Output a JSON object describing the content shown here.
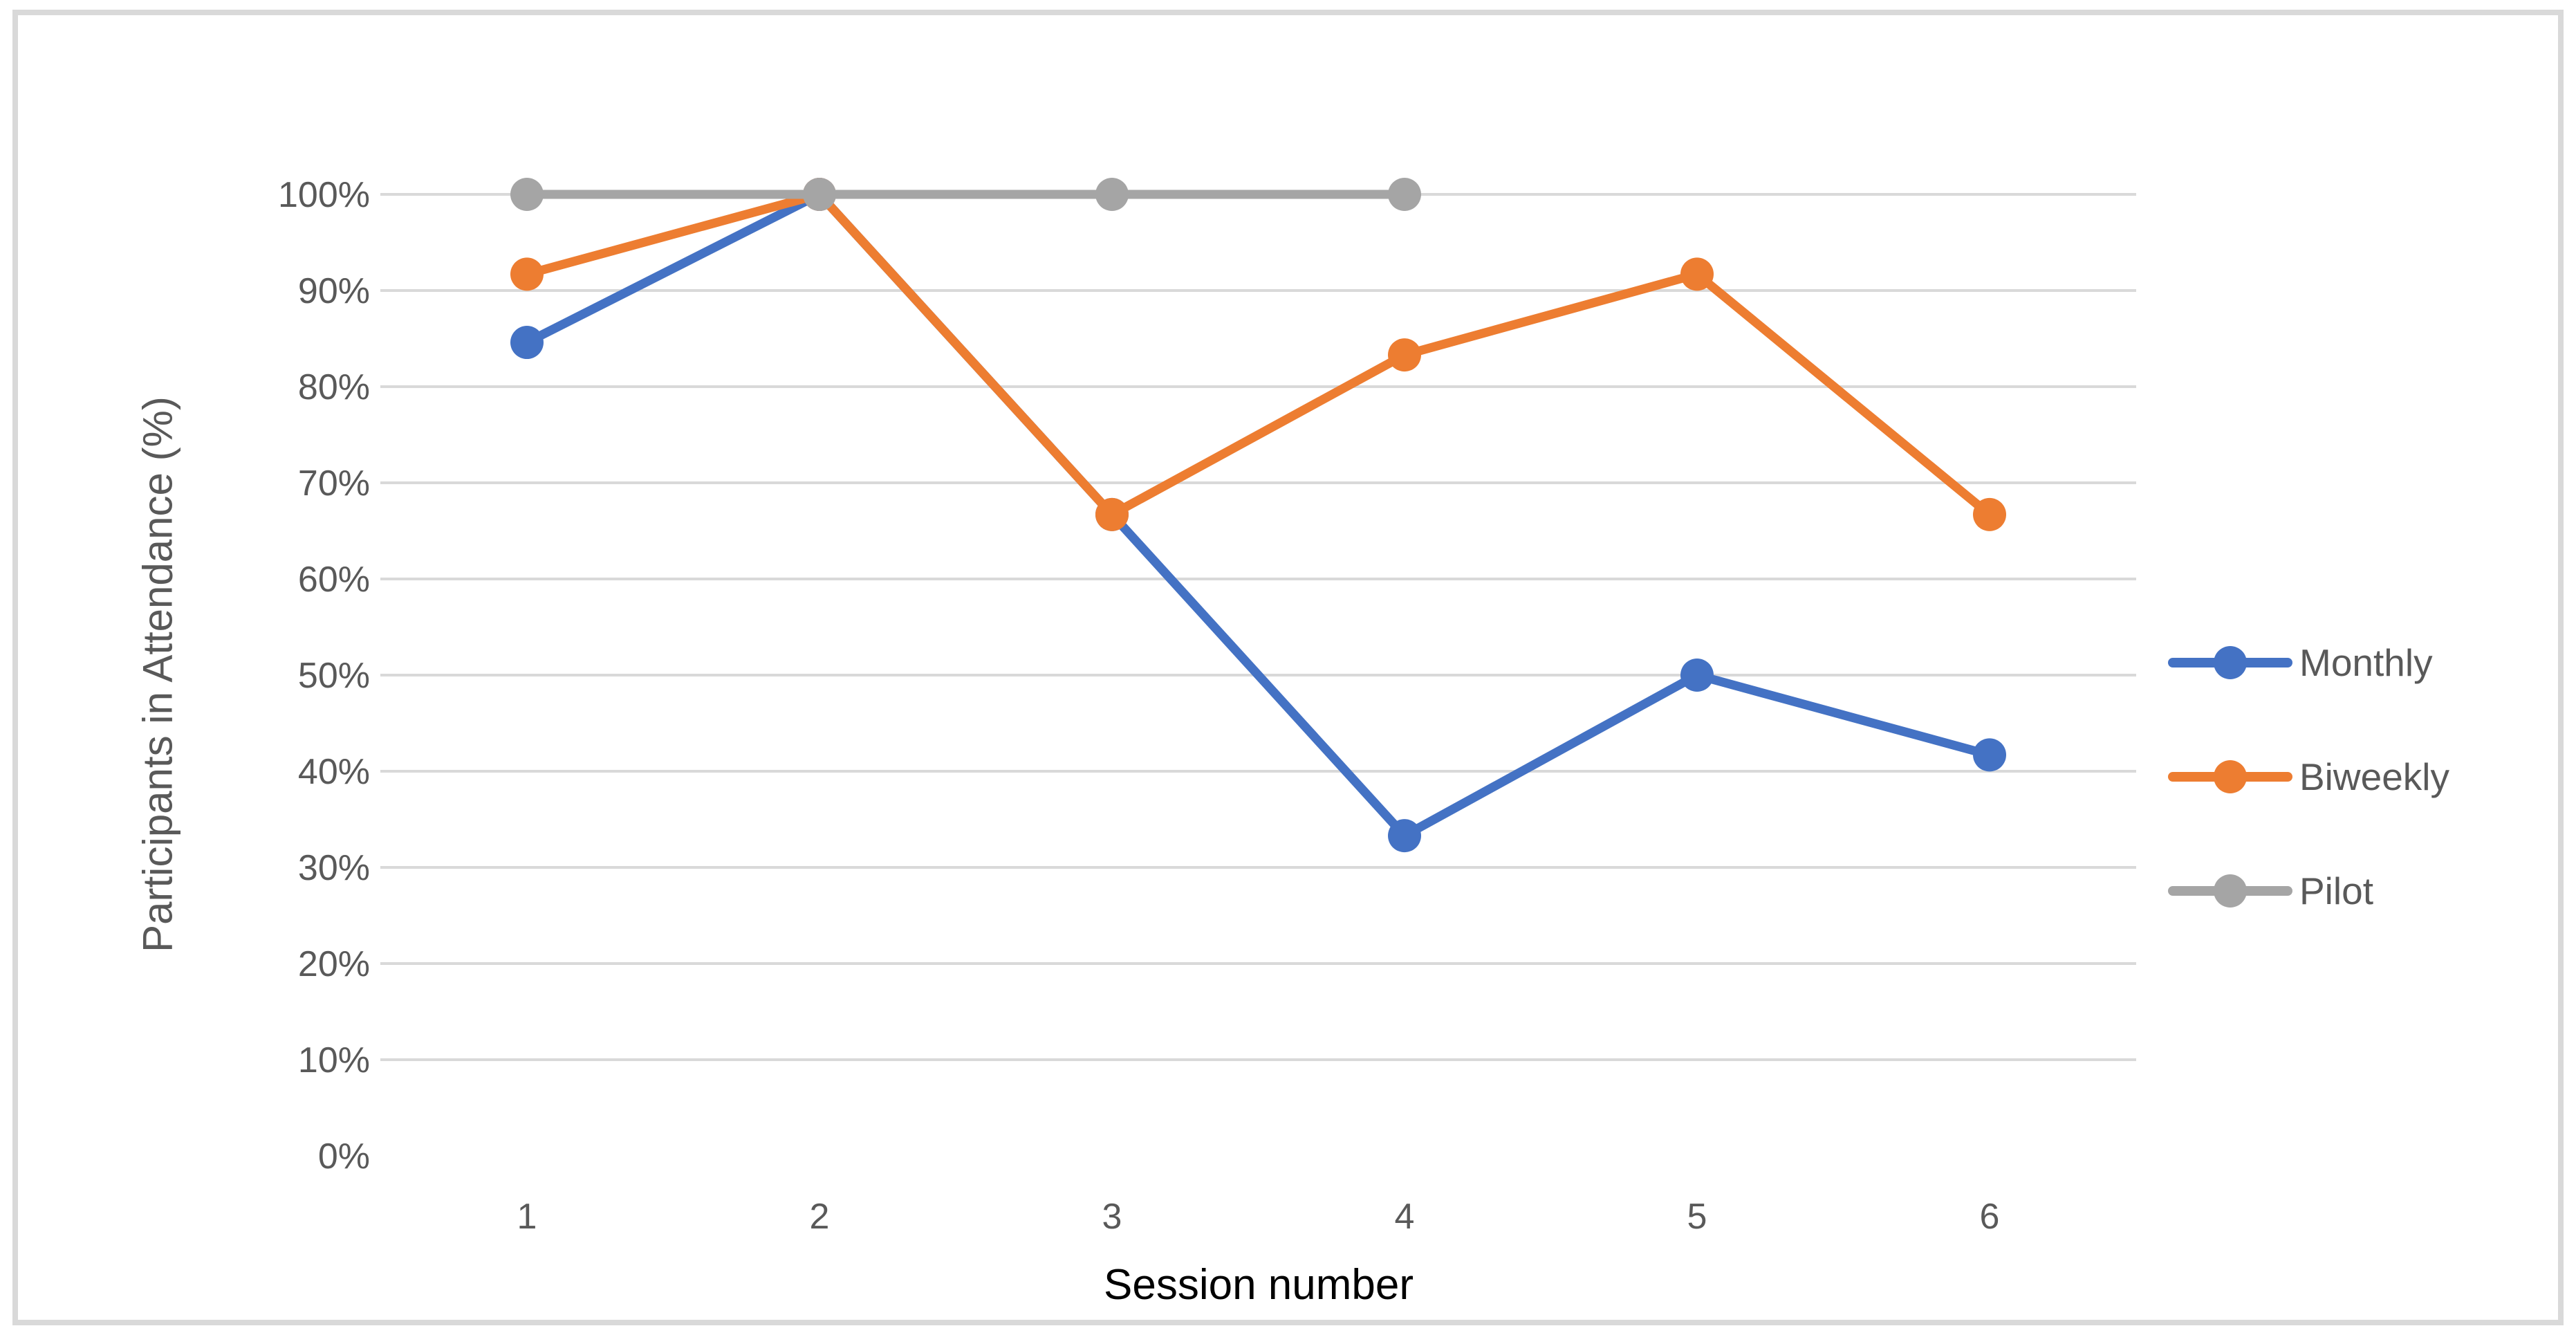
{
  "chart_data": {
    "type": "line",
    "title": "",
    "xlabel": "Session number",
    "ylabel": "Participants in Attendance (%)",
    "x_categories": [
      "1",
      "2",
      "3",
      "4",
      "5",
      "6"
    ],
    "ylim": [
      0,
      100
    ],
    "y_ticks": {
      "values": [
        0,
        10,
        20,
        30,
        40,
        50,
        60,
        70,
        80,
        90,
        100
      ],
      "labels": [
        "0%",
        "10%",
        "20%",
        "30%",
        "40%",
        "50%",
        "60%",
        "70%",
        "80%",
        "90%",
        "100%"
      ]
    },
    "grid": "horizontal-major-only-no-zero-line",
    "legend_position": "right",
    "series": [
      {
        "name": "Monthly",
        "color": "#4472C4",
        "values": [
          84.6,
          100,
          66.7,
          33.3,
          50,
          41.7
        ]
      },
      {
        "name": "Biweekly",
        "color": "#ED7D31",
        "values": [
          91.7,
          100,
          66.7,
          83.3,
          91.7,
          66.7
        ]
      },
      {
        "name": "Pilot",
        "color": "#A5A5A5",
        "values": [
          100,
          100,
          100,
          100,
          null,
          null
        ]
      }
    ]
  },
  "styles": {
    "gridline_color": "#D9D9D9",
    "tick_label_color": "#595959",
    "x_axis_title_color": "#000000",
    "y_axis_title_color": "#595959",
    "page_border_color": "#D9D9D9",
    "background_color": "#FFFFFF"
  }
}
